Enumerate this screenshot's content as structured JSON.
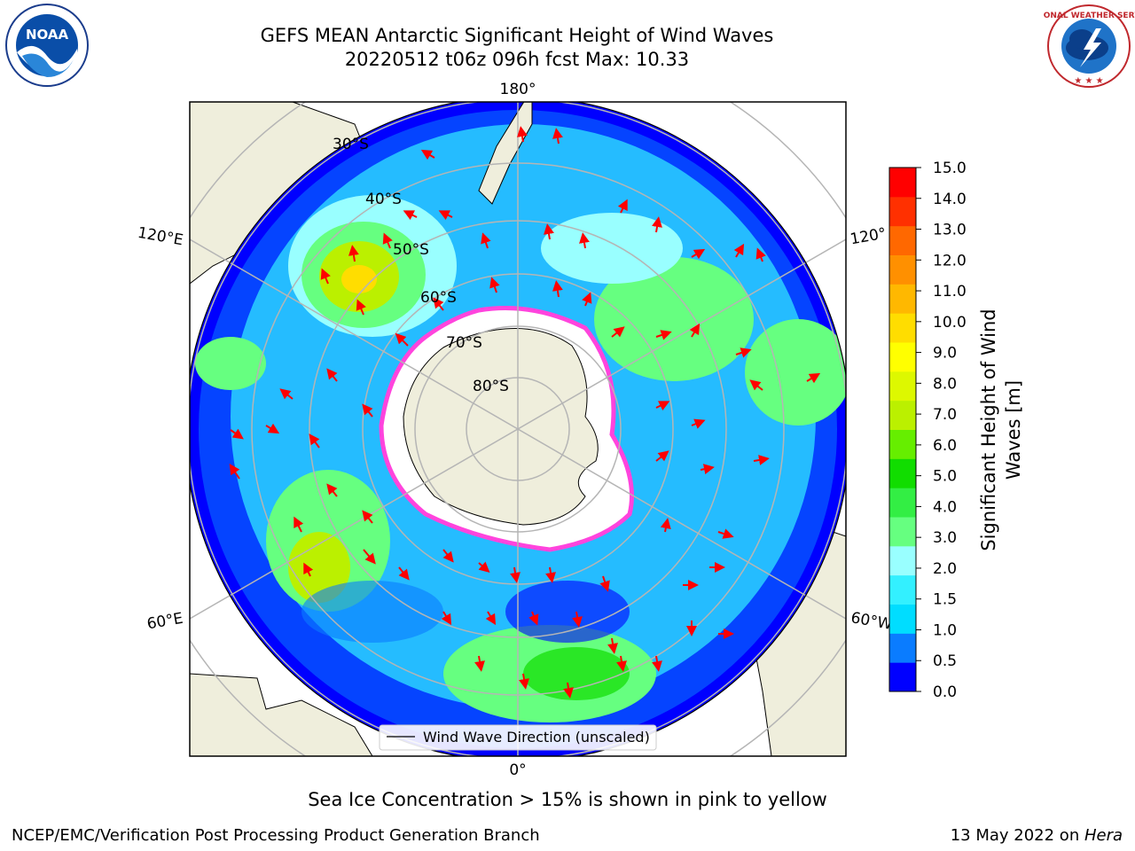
{
  "header": {
    "title_line1": "GEFS MEAN Antarctic Significant Height of Wind Waves",
    "title_line2": "20220512 t06z 096h fcst   Max: 10.33"
  },
  "logos": {
    "noaa_text": "NOAA",
    "nws_text": "NATIONAL WEATHER SERVICE"
  },
  "map": {
    "lon_labels": {
      "top": "180°",
      "bottom": "0°",
      "left_upper": "120°E",
      "left_lower": "60°E",
      "right_upper": "120°",
      "right_lower": "60°W"
    },
    "lat_labels": [
      "30°S",
      "40°S",
      "50°S",
      "60°S",
      "70°S",
      "80°S"
    ],
    "legend_label": "Wind Wave Direction (unscaled)"
  },
  "colorbar": {
    "label": "Significant Height of Wind Waves [m]",
    "label_line1": "Significant Height of Wind",
    "label_line2": "Waves [m]",
    "ticks": [
      "0.0",
      "0.5",
      "1.0",
      "1.5",
      "2.0",
      "3.0",
      "4.0",
      "5.0",
      "6.0",
      "7.0",
      "8.0",
      "9.0",
      "10.0",
      "11.0",
      "12.0",
      "13.0",
      "14.0",
      "15.0"
    ],
    "colors": [
      "#0000ff",
      "#0a7cff",
      "#00ddff",
      "#33f0ff",
      "#99ffff",
      "#66ff80",
      "#33ee44",
      "#11dd00",
      "#66ee00",
      "#bbf000",
      "#ddf800",
      "#ffff00",
      "#ffdd00",
      "#ffb800",
      "#ff9000",
      "#ff6800",
      "#ff3000",
      "#ff0000"
    ]
  },
  "notes": {
    "sea_ice": "Sea Ice Concentration > 15% is shown in pink to yellow"
  },
  "footer": {
    "left": "NCEP/EMC/Verification Post Processing Product Generation Branch",
    "right_date": "13 May 2022 on ",
    "right_host": "Hera"
  }
}
